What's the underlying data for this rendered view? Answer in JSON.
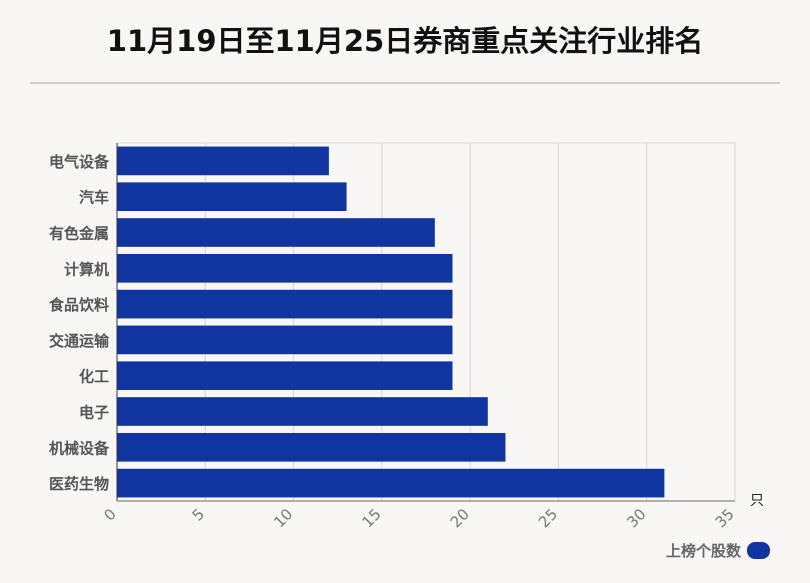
{
  "title": "11月19日至11月25日券商重点关注行业排名",
  "chart_data": {
    "type": "bar",
    "orientation": "horizontal",
    "categories": [
      "电气设备",
      "汽车",
      "有色金属",
      "计算机",
      "食品饮料",
      "交通运输",
      "化工",
      "电子",
      "机械设备",
      "医药生物"
    ],
    "values": [
      12,
      13,
      18,
      19,
      19,
      19,
      19,
      21,
      22,
      31
    ],
    "series": [
      {
        "name": "上榜个股数",
        "values": [
          12,
          13,
          18,
          19,
          19,
          19,
          19,
          21,
          22,
          31
        ]
      }
    ],
    "xlim": [
      0,
      35
    ],
    "xticks": [
      "0",
      "5",
      "10",
      "15",
      "20",
      "25",
      "30",
      "35"
    ],
    "xunit": "只",
    "grid": true,
    "legend_position": "bottom-right",
    "bar_color": "#1035a0"
  }
}
